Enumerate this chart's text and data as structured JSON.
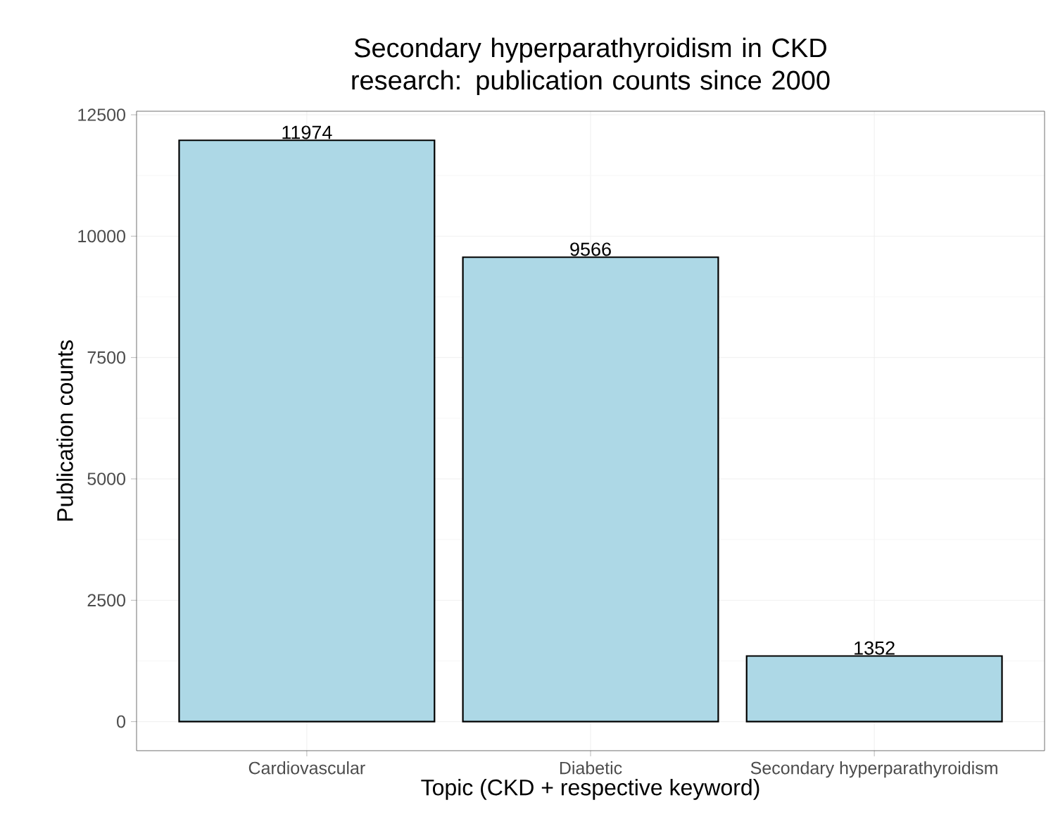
{
  "chart_data": {
    "type": "bar",
    "title": "Secondary hyperparathyroidism in CKD research: publication counts since 2000",
    "xlabel": "Topic (CKD + respective keyword)",
    "ylabel": "Publication counts",
    "categories": [
      "Cardiovascular",
      "Diabetic",
      "Secondary hyperparathyroidism"
    ],
    "values": [
      11974,
      9566,
      1352
    ],
    "color": "#add8e6",
    "ylim": [
      -599,
      12573
    ],
    "yticks": [
      0,
      2500,
      5000,
      7500,
      10000,
      12500
    ],
    "grid": true,
    "data_labels": true
  }
}
